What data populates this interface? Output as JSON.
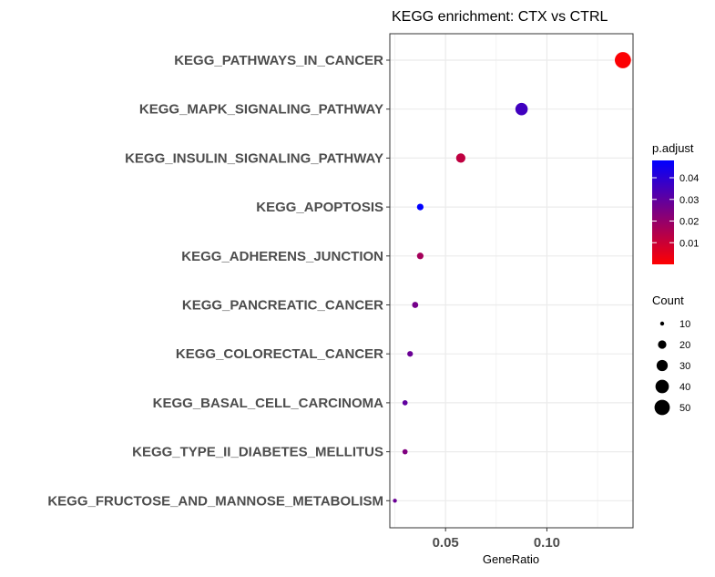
{
  "chart_data": {
    "type": "scatter",
    "title": "KEGG enrichment: CTX vs CTRL",
    "xlabel": "GeneRatio",
    "ylabel": "",
    "xlim": [
      0.0225,
      0.1425
    ],
    "x_ticks": [
      0.05,
      0.1
    ],
    "x_tick_labels": [
      "0.05",
      "0.10"
    ],
    "grid": true,
    "categories": [
      "KEGG_PATHWAYS_IN_CANCER",
      "KEGG_MAPK_SIGNALING_PATHWAY",
      "KEGG_INSULIN_SIGNALING_PATHWAY",
      "KEGG_APOPTOSIS",
      "KEGG_ADHERENS_JUNCTION",
      "KEGG_PANCREATIC_CANCER",
      "KEGG_COLORECTAL_CANCER",
      "KEGG_BASAL_CELL_CARCINOMA",
      "KEGG_TYPE_II_DIABETES_MELLITUS",
      "KEGG_FRUCTOSE_AND_MANNOSE_METABOLISM"
    ],
    "points": [
      {
        "category": "KEGG_PATHWAYS_IN_CANCER",
        "gene_ratio": 0.1375,
        "count": 55,
        "p_adjust": 0.0005
      },
      {
        "category": "KEGG_MAPK_SIGNALING_PATHWAY",
        "gene_ratio": 0.0875,
        "count": 35,
        "p_adjust": 0.036
      },
      {
        "category": "KEGG_INSULIN_SIGNALING_PATHWAY",
        "gene_ratio": 0.0575,
        "count": 23,
        "p_adjust": 0.012
      },
      {
        "category": "KEGG_APOPTOSIS",
        "gene_ratio": 0.0375,
        "count": 15,
        "p_adjust": 0.048
      },
      {
        "category": "KEGG_ADHERENS_JUNCTION",
        "gene_ratio": 0.0375,
        "count": 15,
        "p_adjust": 0.017
      },
      {
        "category": "KEGG_PANCREATIC_CANCER",
        "gene_ratio": 0.035,
        "count": 14,
        "p_adjust": 0.026
      },
      {
        "category": "KEGG_COLORECTAL_CANCER",
        "gene_ratio": 0.0325,
        "count": 13,
        "p_adjust": 0.028
      },
      {
        "category": "KEGG_BASAL_CELL_CARCINOMA",
        "gene_ratio": 0.03,
        "count": 12,
        "p_adjust": 0.03
      },
      {
        "category": "KEGG_TYPE_II_DIABETES_MELLITUS",
        "gene_ratio": 0.03,
        "count": 12,
        "p_adjust": 0.024
      },
      {
        "category": "KEGG_FRUCTOSE_AND_MANNOSE_METABOLISM",
        "gene_ratio": 0.025,
        "count": 10,
        "p_adjust": 0.028
      }
    ],
    "legend_color": {
      "title": "p.adjust",
      "min": 0.0,
      "max": 0.048,
      "low_color": "#ff0000",
      "high_color": "#0000ff",
      "ticks": [
        0.01,
        0.02,
        0.03,
        0.04
      ],
      "tick_labels": [
        "0.01",
        "0.02",
        "0.03",
        "0.04"
      ]
    },
    "legend_size": {
      "title": "Count",
      "values": [
        10,
        20,
        30,
        40,
        50
      ],
      "labels": [
        "10",
        "20",
        "30",
        "40",
        "50"
      ]
    },
    "legend_placement": "right"
  }
}
